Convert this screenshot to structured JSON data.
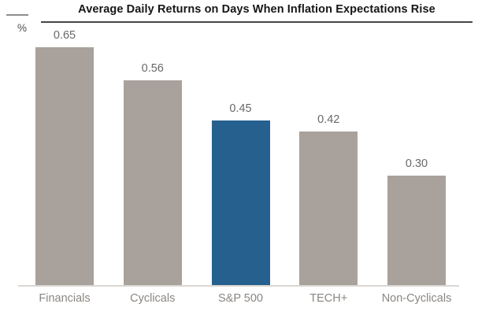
{
  "header": {
    "title": "Average Daily Returns on Days When Inflation Expectations Rise",
    "y_axis_unit": "%"
  },
  "chart_data": {
    "type": "bar",
    "title": "Average Daily Returns on Days When Inflation Expectations Rise",
    "categories": [
      "Financials",
      "Cyclicals",
      "S&P 500",
      "TECH+",
      "Non-Cyclicals"
    ],
    "values": [
      0.65,
      0.56,
      0.45,
      0.42,
      0.3
    ],
    "value_labels": [
      "0.65",
      "0.56",
      "0.45",
      "0.42",
      "0.30"
    ],
    "xlabel": "",
    "ylabel": "%",
    "ylim": [
      0,
      0.7
    ],
    "grid": false,
    "legend": "none",
    "highlight_index": 2,
    "colors": {
      "bar": "#a9a19b",
      "highlight": "#26608f",
      "value_label": "#686868",
      "category_label": "#8a8681",
      "axis_line": "#dbd7d3",
      "title": "#161616",
      "title_underline": "#474747"
    }
  }
}
